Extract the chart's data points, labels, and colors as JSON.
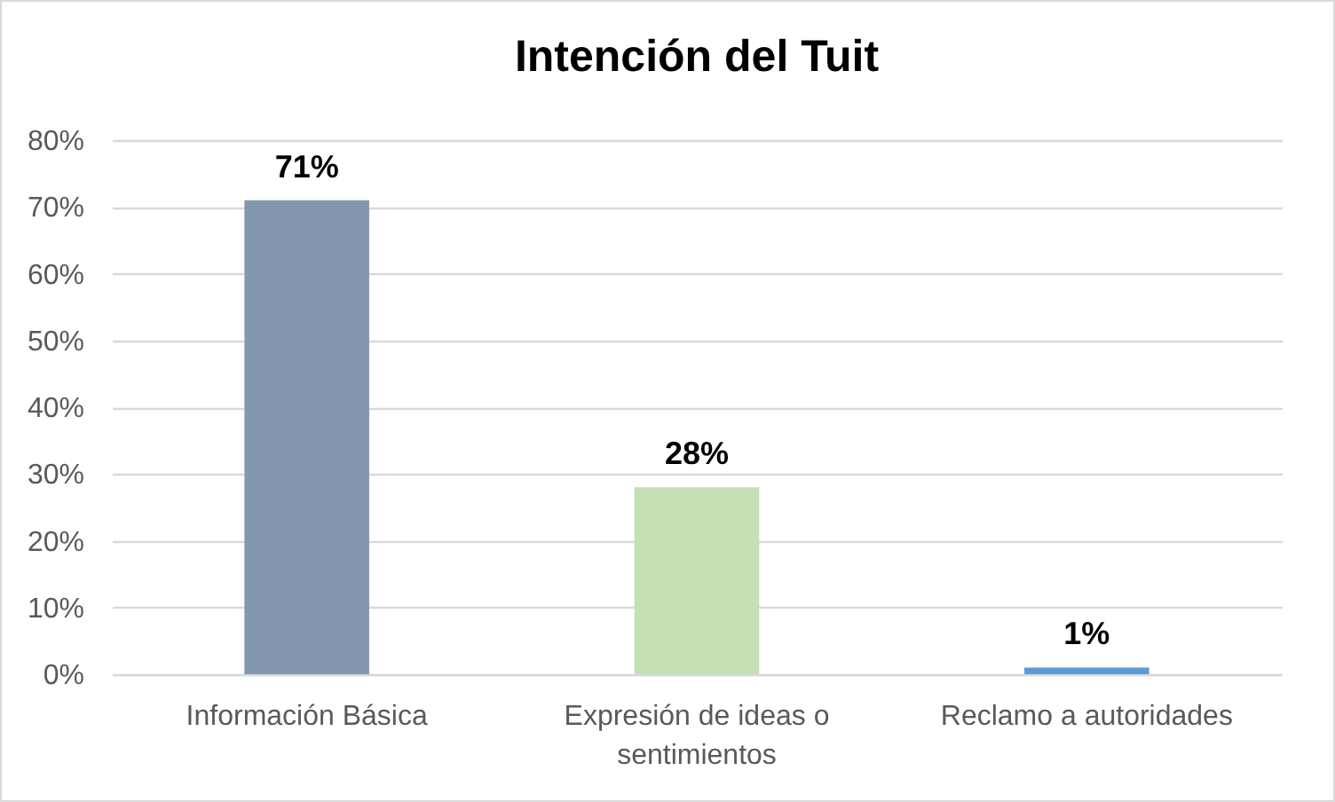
{
  "chart_data": {
    "type": "bar",
    "title": "Intención del Tuit",
    "categories": [
      "Información Básica",
      "Expresión de ideas o sentimientos",
      "Reclamo a autoridades"
    ],
    "values": [
      71,
      28,
      1
    ],
    "colors": [
      "#8497b0",
      "#c5e0b4",
      "#5b9bd5"
    ],
    "value_labels": [
      "71%",
      "28%",
      "1%"
    ],
    "ylim": [
      0,
      80
    ],
    "yticks": [
      {
        "value": 0,
        "label": "0%"
      },
      {
        "value": 10,
        "label": "10%"
      },
      {
        "value": 20,
        "label": "20%"
      },
      {
        "value": 30,
        "label": "30%"
      },
      {
        "value": 40,
        "label": "40%"
      },
      {
        "value": 50,
        "label": "50%"
      },
      {
        "value": 60,
        "label": "60%"
      },
      {
        "value": 70,
        "label": "70%"
      },
      {
        "value": 80,
        "label": "80%"
      }
    ],
    "grid": "y"
  }
}
